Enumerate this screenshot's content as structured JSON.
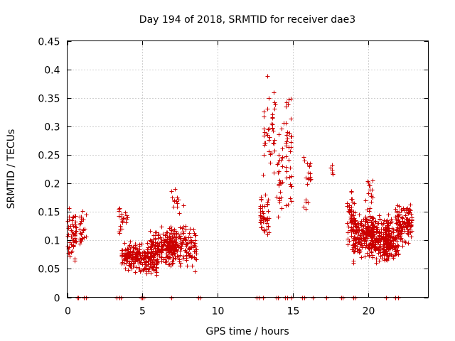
{
  "chart_data": {
    "type": "scatter",
    "title": "Day 194 of 2018, SRMTID for receiver dae3",
    "xlabel": "GPS time / hours",
    "ylabel": "SRMTID / TECUs",
    "xlim": [
      0,
      24
    ],
    "ylim": [
      0,
      0.45
    ],
    "x_ticks": [
      0,
      5,
      10,
      15,
      20
    ],
    "y_ticks": [
      0,
      0.05,
      0.1,
      0.15,
      0.2,
      0.25,
      0.3,
      0.35,
      0.4,
      0.45
    ],
    "grid": true,
    "series_color": "#cc0000",
    "marker": "+",
    "clusters": [
      {
        "x0": 0.0,
        "x1": 0.6,
        "y0": 0.05,
        "y1": 0.17,
        "n": 60
      },
      {
        "x0": 0.8,
        "x1": 1.3,
        "y0": 0.07,
        "y1": 0.17,
        "n": 25
      },
      {
        "x0": 3.4,
        "x1": 4.0,
        "y0": 0.1,
        "y1": 0.17,
        "n": 22
      },
      {
        "x0": 3.6,
        "x1": 4.8,
        "y0": 0.04,
        "y1": 0.11,
        "n": 130
      },
      {
        "x0": 4.8,
        "x1": 6.0,
        "y0": 0.03,
        "y1": 0.1,
        "n": 110
      },
      {
        "x0": 5.5,
        "x1": 7.2,
        "y0": 0.05,
        "y1": 0.13,
        "n": 160
      },
      {
        "x0": 6.5,
        "x1": 8.6,
        "y0": 0.04,
        "y1": 0.14,
        "n": 170
      },
      {
        "x0": 6.6,
        "x1": 7.8,
        "y0": 0.13,
        "y1": 0.2,
        "n": 14
      },
      {
        "x0": 12.8,
        "x1": 13.4,
        "y0": 0.09,
        "y1": 0.2,
        "n": 45
      },
      {
        "x0": 13.0,
        "x1": 13.8,
        "y0": 0.18,
        "y1": 0.4,
        "n": 40
      },
      {
        "x0": 13.9,
        "x1": 14.4,
        "y0": 0.1,
        "y1": 0.35,
        "n": 28
      },
      {
        "x0": 14.5,
        "x1": 14.9,
        "y0": 0.08,
        "y1": 0.41,
        "n": 35
      },
      {
        "x0": 15.7,
        "x1": 16.2,
        "y0": 0.11,
        "y1": 0.31,
        "n": 20
      },
      {
        "x0": 17.5,
        "x1": 17.7,
        "y0": 0.2,
        "y1": 0.24,
        "n": 6
      },
      {
        "x0": 18.6,
        "x1": 19.2,
        "y0": 0.04,
        "y1": 0.22,
        "n": 60
      },
      {
        "x0": 19.0,
        "x1": 20.3,
        "y0": 0.06,
        "y1": 0.16,
        "n": 180
      },
      {
        "x0": 19.8,
        "x1": 20.3,
        "y0": 0.13,
        "y1": 0.25,
        "n": 15
      },
      {
        "x0": 20.2,
        "x1": 21.5,
        "y0": 0.05,
        "y1": 0.16,
        "n": 170
      },
      {
        "x0": 21.0,
        "x1": 22.0,
        "y0": 0.05,
        "y1": 0.14,
        "n": 110
      },
      {
        "x0": 21.8,
        "x1": 22.9,
        "y0": 0.08,
        "y1": 0.18,
        "n": 130
      }
    ],
    "zero_points": [
      0.7,
      0.75,
      1.1,
      1.25,
      3.3,
      3.45,
      3.55,
      4.9,
      5.0,
      5.1,
      6.9,
      8.7,
      8.8,
      12.6,
      12.75,
      13.0,
      13.9,
      14.0,
      14.5,
      14.6,
      14.9,
      15.6,
      15.75,
      16.3,
      17.2,
      18.2,
      18.3,
      19.0,
      19.1,
      21.2,
      21.8,
      22.0
    ]
  }
}
